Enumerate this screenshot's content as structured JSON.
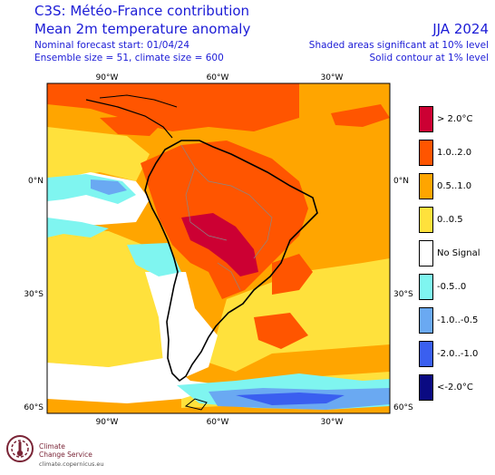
{
  "header": {
    "title_line1": "C3S: Météo-France contribution",
    "title_line2": "Mean 2m temperature anomaly",
    "forecast_start": "Nominal forecast start: 01/04/24",
    "ensemble": "Ensemble size = 51, climate size = 600",
    "period": "JJA 2024",
    "note_shaded": "Shaded areas significant at 10% level",
    "note_contour": "Solid contour at 1% level"
  },
  "axes": {
    "top_lon": [
      "90°W",
      "60°W",
      "30°W"
    ],
    "bottom_lon": [
      "90°W",
      "60°W",
      "30°W"
    ],
    "left_lat": [
      "0°N",
      "30°S",
      "60°S"
    ],
    "right_lat": [
      "0°N",
      "30°S",
      "60°S"
    ]
  },
  "legend": {
    "items": [
      {
        "label": "> 2.0°C",
        "color": "#cc0033"
      },
      {
        "label": "1.0..2.0",
        "color": "#ff5500"
      },
      {
        "label": "0.5..1.0",
        "color": "#ffa500"
      },
      {
        "label": "0..0.5",
        "color": "#ffe13c"
      },
      {
        "label": "No Signal",
        "color": "#ffffff"
      },
      {
        "label": "-0.5..0",
        "color": "#7ff5f0"
      },
      {
        "label": "-1.0..-0.5",
        "color": "#6aa9f2"
      },
      {
        "label": "-2.0..-1.0",
        "color": "#3a5ff0"
      },
      {
        "label": "<-2.0°C",
        "color": "#0a0a82"
      }
    ]
  },
  "logo": {
    "name_line1": "Climate",
    "name_line2": "Change Service",
    "url": "climate.copernicus.eu"
  }
}
